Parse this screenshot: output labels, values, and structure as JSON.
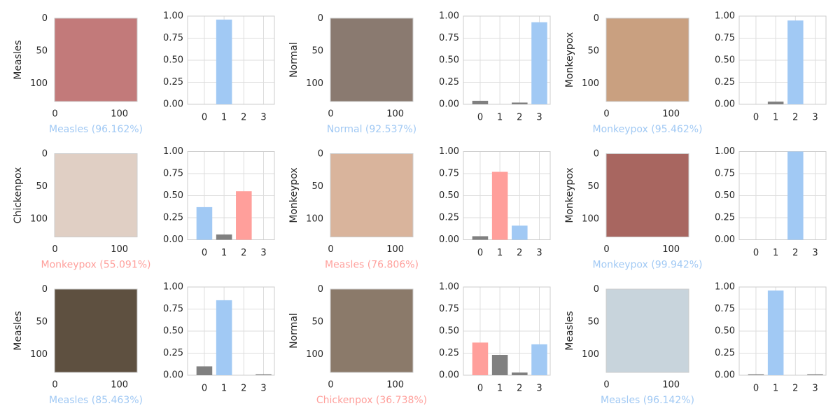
{
  "chart_data": [
    {
      "type": "image",
      "ylabel": "Measles",
      "xlabel": "Measles (96.162%)",
      "xlabel_color": "#a1c9f4",
      "xlim": [
        -0.5,
        127.5
      ],
      "ylim": [
        127.5,
        -0.5
      ],
      "xticks": [
        0,
        100
      ],
      "yticks": [
        0,
        50,
        100
      ]
    },
    {
      "type": "bar",
      "categories": [
        "0",
        "1",
        "2",
        "3"
      ],
      "values": [
        0,
        0.96,
        0,
        0
      ],
      "colors": [
        "#808080",
        "#a1c9f4",
        "#808080",
        "#808080"
      ],
      "ylim": [
        0,
        1
      ],
      "yticks": [
        {
          "value": 0,
          "label": "0.00"
        },
        {
          "value": 0.25,
          "label": "0.25"
        },
        {
          "value": 0.5,
          "label": "0.50"
        },
        {
          "value": 0.75,
          "label": "0.75"
        },
        {
          "value": 1,
          "label": "1.00"
        }
      ],
      "grid": true
    },
    {
      "type": "image",
      "ylabel": "Normal",
      "xlabel": "Normal (92.537%)",
      "xlabel_color": "#a1c9f4",
      "xlim": [
        -0.5,
        127.5
      ],
      "ylim": [
        127.5,
        -0.5
      ],
      "xticks": [
        0,
        100
      ],
      "yticks": [
        0,
        50,
        100
      ]
    },
    {
      "type": "bar",
      "categories": [
        "0",
        "1",
        "2",
        "3"
      ],
      "values": [
        0.04,
        0,
        0.02,
        0.93
      ],
      "colors": [
        "#808080",
        "#808080",
        "#808080",
        "#a1c9f4"
      ],
      "ylim": [
        0,
        1
      ],
      "yticks": [
        {
          "value": 0,
          "label": "0.00"
        },
        {
          "value": 0.25,
          "label": "0.25"
        },
        {
          "value": 0.5,
          "label": "0.50"
        },
        {
          "value": 0.75,
          "label": "0.75"
        },
        {
          "value": 1,
          "label": "1.00"
        }
      ],
      "grid": true
    },
    {
      "type": "image",
      "ylabel": "Monkeypox",
      "xlabel": "Monkeypox (95.462%)",
      "xlabel_color": "#a1c9f4",
      "xlim": [
        -0.5,
        127.5
      ],
      "ylim": [
        127.5,
        -0.5
      ],
      "xticks": [
        0,
        100
      ],
      "yticks": [
        0,
        50,
        100
      ]
    },
    {
      "type": "bar",
      "categories": [
        "0",
        "1",
        "2",
        "3"
      ],
      "values": [
        0,
        0.03,
        0.95,
        0
      ],
      "colors": [
        "#808080",
        "#808080",
        "#a1c9f4",
        "#808080"
      ],
      "ylim": [
        0,
        1
      ],
      "yticks": [
        {
          "value": 0,
          "label": "0.00"
        },
        {
          "value": 0.25,
          "label": "0.25"
        },
        {
          "value": 0.5,
          "label": "0.50"
        },
        {
          "value": 0.75,
          "label": "0.75"
        },
        {
          "value": 1,
          "label": "1.00"
        }
      ],
      "grid": true
    },
    {
      "type": "image",
      "ylabel": "Chickenpox",
      "xlabel": "Monkeypox (55.091%)",
      "xlabel_color": "#ff9f9b",
      "xlim": [
        -0.5,
        127.5
      ],
      "ylim": [
        127.5,
        -0.5
      ],
      "xticks": [
        0,
        100
      ],
      "yticks": [
        0,
        50,
        100
      ]
    },
    {
      "type": "bar",
      "categories": [
        "0",
        "1",
        "2",
        "3"
      ],
      "values": [
        0.37,
        0.06,
        0.55,
        0
      ],
      "colors": [
        "#a1c9f4",
        "#808080",
        "#ff9f9b",
        "#808080"
      ],
      "ylim": [
        0,
        1
      ],
      "yticks": [
        {
          "value": 0,
          "label": "0.00"
        },
        {
          "value": 0.25,
          "label": "0.25"
        },
        {
          "value": 0.5,
          "label": "0.50"
        },
        {
          "value": 0.75,
          "label": "0.75"
        },
        {
          "value": 1,
          "label": "1.00"
        }
      ],
      "grid": true
    },
    {
      "type": "image",
      "ylabel": "Monkeypox",
      "xlabel": "Measles (76.806%)",
      "xlabel_color": "#ff9f9b",
      "xlim": [
        -0.5,
        127.5
      ],
      "ylim": [
        127.5,
        -0.5
      ],
      "xticks": [
        0,
        100
      ],
      "yticks": [
        0,
        50,
        100
      ]
    },
    {
      "type": "bar",
      "categories": [
        "0",
        "1",
        "2",
        "3"
      ],
      "values": [
        0.04,
        0.77,
        0.16,
        0
      ],
      "colors": [
        "#808080",
        "#ff9f9b",
        "#a1c9f4",
        "#808080"
      ],
      "ylim": [
        0,
        1
      ],
      "yticks": [
        {
          "value": 0,
          "label": "0.00"
        },
        {
          "value": 0.25,
          "label": "0.25"
        },
        {
          "value": 0.5,
          "label": "0.50"
        },
        {
          "value": 0.75,
          "label": "0.75"
        },
        {
          "value": 1,
          "label": "1.00"
        }
      ],
      "grid": true
    },
    {
      "type": "image",
      "ylabel": "Monkeypox",
      "xlabel": "Monkeypox (99.942%)",
      "xlabel_color": "#a1c9f4",
      "xlim": [
        -0.5,
        127.5
      ],
      "ylim": [
        127.5,
        -0.5
      ],
      "xticks": [
        0,
        100
      ],
      "yticks": [
        0,
        50,
        100
      ]
    },
    {
      "type": "bar",
      "categories": [
        "0",
        "1",
        "2",
        "3"
      ],
      "values": [
        0,
        0,
        1.0,
        0
      ],
      "colors": [
        "#808080",
        "#808080",
        "#a1c9f4",
        "#808080"
      ],
      "ylim": [
        0,
        1
      ],
      "yticks": [
        {
          "value": 0,
          "label": "0.00"
        },
        {
          "value": 0.25,
          "label": "0.25"
        },
        {
          "value": 0.5,
          "label": "0.50"
        },
        {
          "value": 0.75,
          "label": "0.75"
        },
        {
          "value": 1,
          "label": "1.00"
        }
      ],
      "grid": true
    },
    {
      "type": "image",
      "ylabel": "Measles",
      "xlabel": "Measles (85.463%)",
      "xlabel_color": "#a1c9f4",
      "xlim": [
        -0.5,
        127.5
      ],
      "ylim": [
        127.5,
        -0.5
      ],
      "xticks": [
        0,
        100
      ],
      "yticks": [
        0,
        50,
        100
      ]
    },
    {
      "type": "bar",
      "categories": [
        "0",
        "1",
        "2",
        "3"
      ],
      "values": [
        0.1,
        0.85,
        0,
        0.01
      ],
      "colors": [
        "#808080",
        "#a1c9f4",
        "#808080",
        "#808080"
      ],
      "ylim": [
        0,
        1
      ],
      "yticks": [
        {
          "value": 0,
          "label": "0.00"
        },
        {
          "value": 0.25,
          "label": "0.25"
        },
        {
          "value": 0.5,
          "label": "0.50"
        },
        {
          "value": 0.75,
          "label": "0.75"
        },
        {
          "value": 1,
          "label": "1.00"
        }
      ],
      "grid": true
    },
    {
      "type": "image",
      "ylabel": "Normal",
      "xlabel": "Chickenpox (36.738%)",
      "xlabel_color": "#ff9f9b",
      "xlim": [
        -0.5,
        127.5
      ],
      "ylim": [
        127.5,
        -0.5
      ],
      "xticks": [
        0,
        100
      ],
      "yticks": [
        0,
        50,
        100
      ]
    },
    {
      "type": "bar",
      "categories": [
        "0",
        "1",
        "2",
        "3"
      ],
      "values": [
        0.37,
        0.23,
        0.03,
        0.35
      ],
      "colors": [
        "#ff9f9b",
        "#808080",
        "#808080",
        "#a1c9f4"
      ],
      "ylim": [
        0,
        1
      ],
      "yticks": [
        {
          "value": 0,
          "label": "0.00"
        },
        {
          "value": 0.25,
          "label": "0.25"
        },
        {
          "value": 0.5,
          "label": "0.50"
        },
        {
          "value": 0.75,
          "label": "0.75"
        },
        {
          "value": 1,
          "label": "1.00"
        }
      ],
      "grid": true
    },
    {
      "type": "image",
      "ylabel": "Measles",
      "xlabel": "Measles (96.142%)",
      "xlabel_color": "#a1c9f4",
      "xlim": [
        -0.5,
        127.5
      ],
      "ylim": [
        127.5,
        -0.5
      ],
      "xticks": [
        0,
        100
      ],
      "yticks": [
        0,
        50,
        100
      ]
    },
    {
      "type": "bar",
      "categories": [
        "0",
        "1",
        "2",
        "3"
      ],
      "values": [
        0.01,
        0.96,
        0,
        0.01
      ],
      "colors": [
        "#808080",
        "#a1c9f4",
        "#808080",
        "#808080"
      ],
      "ylim": [
        0,
        1
      ],
      "yticks": [
        {
          "value": 0,
          "label": "0.00"
        },
        {
          "value": 0.25,
          "label": "0.25"
        },
        {
          "value": 0.5,
          "label": "0.50"
        },
        {
          "value": 0.75,
          "label": "0.75"
        },
        {
          "value": 1,
          "label": "1.00"
        }
      ],
      "grid": true
    }
  ]
}
